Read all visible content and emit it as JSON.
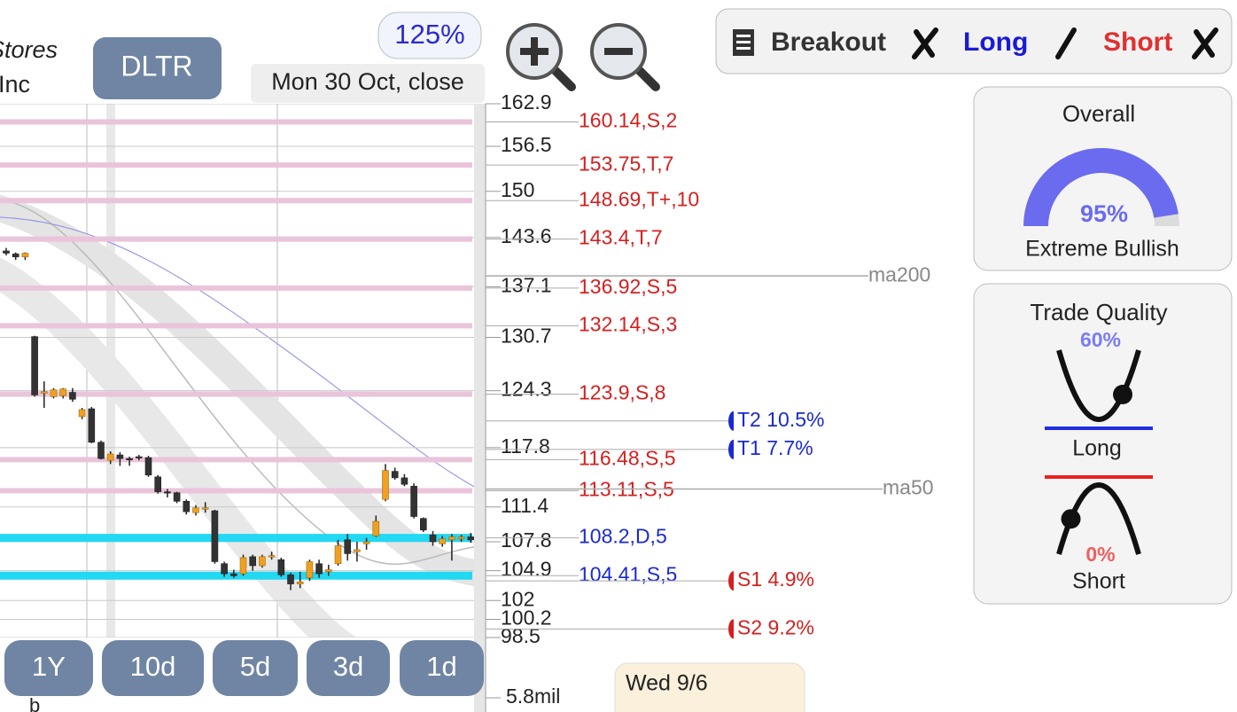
{
  "header": {
    "company_line1": "Stores",
    "company_line2": "Inc",
    "ticker": "DLTR",
    "zoom": "125%",
    "date_label": "Mon 30 Oct, close"
  },
  "signals": {
    "breakout": "Breakout",
    "long": "Long",
    "short": "Short"
  },
  "chart_data": {
    "type": "candlestick",
    "log_scale": true,
    "ylim": [
      98.5,
      162.9
    ],
    "yticks": [
      162.9,
      156.5,
      150,
      143.6,
      137.1,
      130.7,
      124.3,
      117.8,
      111.4,
      107.8,
      104.9,
      102,
      100.2,
      98.5
    ],
    "up_color": "#f0a020",
    "down_color": "#333333",
    "candles": [
      [
        141.8,
        142.2,
        141.2,
        141.5
      ],
      [
        141.4,
        141.6,
        140.6,
        141.0
      ],
      [
        141.0,
        141.6,
        140.6,
        141.5
      ],
      [
        130.8,
        130.9,
        123.6,
        123.8
      ],
      [
        124.0,
        125.4,
        122.3,
        124.2
      ],
      [
        123.6,
        124.6,
        123.4,
        124.4
      ],
      [
        123.7,
        124.6,
        123.4,
        124.5
      ],
      [
        124.1,
        124.6,
        123.0,
        123.3
      ],
      [
        121.3,
        122.3,
        121.0,
        122.1
      ],
      [
        122.2,
        122.4,
        118.3,
        118.4
      ],
      [
        118.4,
        118.6,
        116.5,
        116.6
      ],
      [
        116.4,
        117.4,
        116.0,
        117.1
      ],
      [
        117.0,
        117.3,
        115.8,
        116.6
      ],
      [
        116.6,
        116.8,
        115.8,
        116.5
      ],
      [
        116.8,
        117.0,
        116.4,
        116.8
      ],
      [
        116.7,
        116.9,
        114.6,
        114.8
      ],
      [
        114.6,
        114.8,
        112.8,
        113.0
      ],
      [
        113.0,
        113.3,
        112.4,
        112.9
      ],
      [
        112.9,
        113.0,
        111.8,
        112.0
      ],
      [
        112.0,
        112.2,
        110.6,
        110.9
      ],
      [
        110.8,
        111.6,
        110.5,
        111.3
      ],
      [
        111.2,
        111.9,
        110.8,
        111.3
      ],
      [
        111.0,
        111.1,
        105.6,
        105.8
      ],
      [
        105.6,
        105.8,
        104.3,
        104.6
      ],
      [
        104.6,
        105.0,
        104.2,
        104.4
      ],
      [
        104.6,
        106.5,
        104.4,
        106.2
      ],
      [
        106.3,
        106.5,
        104.9,
        105.4
      ],
      [
        105.4,
        106.5,
        105.2,
        106.3
      ],
      [
        106.3,
        106.8,
        106.0,
        106.4
      ],
      [
        106.0,
        106.2,
        104.3,
        104.5
      ],
      [
        104.5,
        104.7,
        103.0,
        103.6
      ],
      [
        103.6,
        104.8,
        103.2,
        103.8
      ],
      [
        104.2,
        106.0,
        103.9,
        105.8
      ],
      [
        105.6,
        106.0,
        104.2,
        104.6
      ],
      [
        104.8,
        105.5,
        104.4,
        105.0
      ],
      [
        105.6,
        108.0,
        105.4,
        107.4
      ],
      [
        108.0,
        108.6,
        105.9,
        106.6
      ],
      [
        106.8,
        107.8,
        105.8,
        107.0
      ],
      [
        107.6,
        108.2,
        107.0,
        107.8
      ],
      [
        108.4,
        110.5,
        108.3,
        109.9
      ],
      [
        112.2,
        116.0,
        112.0,
        115.3
      ],
      [
        115.2,
        115.6,
        114.3,
        114.5
      ],
      [
        114.5,
        114.9,
        113.6,
        113.8
      ],
      [
        113.6,
        113.9,
        110.2,
        110.4
      ],
      [
        110.2,
        110.3,
        108.8,
        109.0
      ],
      [
        108.5,
        108.9,
        107.4,
        107.8
      ],
      [
        107.6,
        108.4,
        107.3,
        108.1
      ],
      [
        108.0,
        108.6,
        105.9,
        108.3
      ],
      [
        108.1,
        108.5,
        107.8,
        108.3
      ],
      [
        108.3,
        108.7,
        107.7,
        108.0
      ],
      [
        108.2,
        109.9,
        108.0,
        109.6
      ]
    ],
    "levels": [
      {
        "label": "160.14,S,2",
        "value": 160.14,
        "color": "#eac4da",
        "label_color": "#d42020"
      },
      {
        "label": "153.75,T,7",
        "value": 153.75,
        "color": "#eac4da",
        "label_color": "#d42020"
      },
      {
        "label": "148.69,T+,10",
        "value": 148.69,
        "color": "#eac4da",
        "label_color": "#d42020"
      },
      {
        "label": "143.4,T,7",
        "value": 143.4,
        "color": "#eac4da",
        "label_color": "#d42020"
      },
      {
        "label": "136.92,S,5",
        "value": 136.92,
        "color": "#eac4da",
        "label_color": "#d42020"
      },
      {
        "label": "132.14,S,3",
        "value": 132.14,
        "color": "#eac4da",
        "label_color": "#d42020"
      },
      {
        "label": "123.9,S,8",
        "value": 123.9,
        "color": "#eac4da",
        "label_color": "#d42020"
      },
      {
        "label": "116.48,S,5",
        "value": 116.48,
        "color": "#eac4da",
        "label_color": "#d42020"
      },
      {
        "label": "113.11,S,5",
        "value": 113.11,
        "color": "#eac4da",
        "label_color": "#d42020"
      },
      {
        "label": "108.2,D,5",
        "value": 108.2,
        "color": "#22d8f2",
        "label_color": "#1a2ad0"
      },
      {
        "label": "104.41,S,5",
        "value": 104.41,
        "color": "#22d8f2",
        "label_color": "#1a2ad0"
      }
    ],
    "targets": [
      {
        "label": "T2 10.5%",
        "value": 120.8,
        "color": "#1a2ad0"
      },
      {
        "label": "T1 7.7%",
        "value": 117.6,
        "color": "#1a2ad0"
      },
      {
        "label": "S1 4.9%",
        "value": 103.9,
        "color": "#d42020"
      },
      {
        "label": "S2 9.2%",
        "value": 99.3,
        "color": "#d42020"
      }
    ],
    "moving_averages": [
      {
        "name": "ma200",
        "value": 138.5
      },
      {
        "name": "ma50",
        "value": 113.3
      }
    ],
    "volume_label": "5.8mil"
  },
  "periods": [
    "1Y",
    "10d",
    "5d",
    "3d",
    "1d"
  ],
  "overall": {
    "title": "Overall",
    "value": 95,
    "value_label": "95%",
    "rating": "Extreme Bullish"
  },
  "trade_quality": {
    "title": "Trade Quality",
    "long_value": 60,
    "long_label": "60%",
    "long": "Long",
    "short_value": 0,
    "short_label": "0%",
    "short": "Short"
  },
  "footer": {
    "axis_fragment": "b",
    "date": "Wed 9/6"
  }
}
